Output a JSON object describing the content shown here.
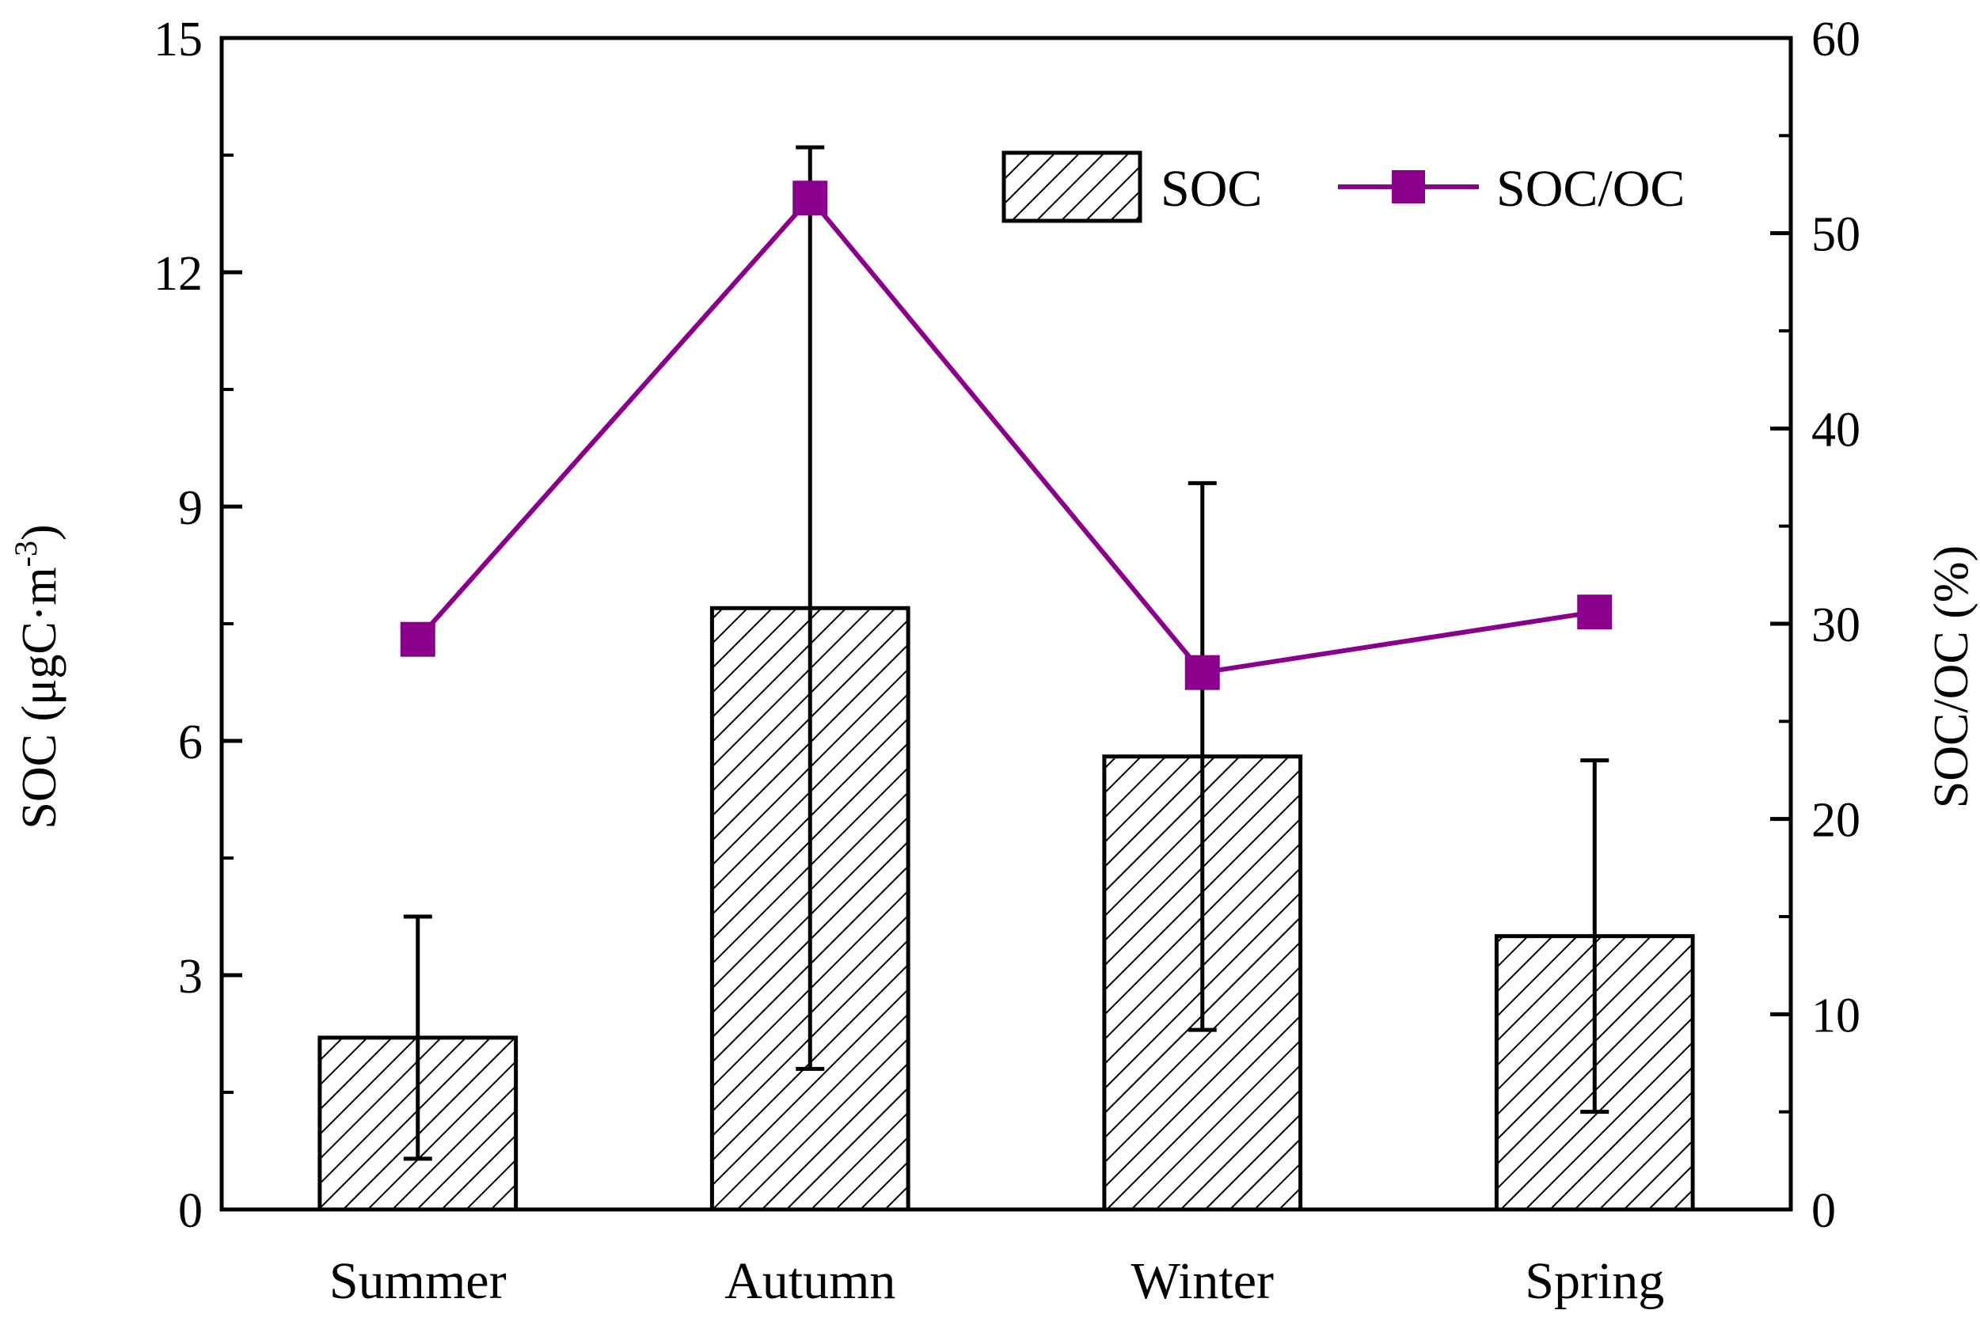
{
  "chart_data": {
    "type": "bar",
    "categories": [
      "Summer",
      "Autumn",
      "Winter",
      "Spring"
    ],
    "series": [
      {
        "name": "SOC",
        "axis": "left",
        "kind": "bar",
        "pattern": "hatched",
        "values": [
          2.2,
          7.7,
          5.8,
          3.5
        ],
        "error": [
          1.55,
          5.9,
          3.5,
          2.25
        ]
      },
      {
        "name": "SOC/OC",
        "axis": "right",
        "kind": "line",
        "marker": "square",
        "color": "#8b008b",
        "values": [
          29.2,
          51.8,
          27.5,
          30.6
        ]
      }
    ],
    "y_left": {
      "label_main": "SOC (μgC·m",
      "label_exp": "-3",
      "label_close": ")",
      "ylim": [
        0,
        15
      ],
      "ticks": [
        "0",
        "3",
        "6",
        "9",
        "12",
        "15"
      ],
      "tick_values": [
        0,
        3,
        6,
        9,
        12,
        15
      ]
    },
    "y_right": {
      "label": "SOC/OC (%)",
      "ylim": [
        0,
        60
      ],
      "ticks": [
        "0",
        "10",
        "20",
        "30",
        "40",
        "50",
        "60"
      ],
      "tick_values": [
        0,
        10,
        20,
        30,
        40,
        50,
        60
      ]
    },
    "legend": {
      "position": "top-right",
      "bar_label": "SOC",
      "line_label": "SOC/OC"
    },
    "grid": false
  }
}
